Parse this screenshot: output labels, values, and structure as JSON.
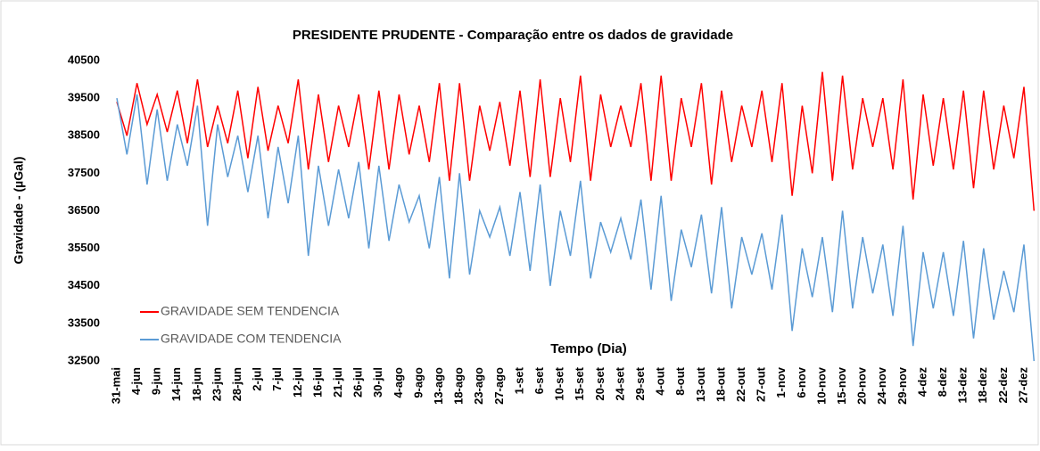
{
  "chart_data": {
    "type": "line",
    "title": "PRESIDENTE PRUDENTE - Comparação entre  os dados de gravidade",
    "y_label": "Gravidade - (µGal)",
    "x_label": "Tempo  (Dia)",
    "categories": [
      "31-mai",
      null,
      "4-jun",
      null,
      "9-jun",
      null,
      "14-jun",
      null,
      "18-jun",
      null,
      "23-jun",
      null,
      "28-jun",
      null,
      "2-jul",
      null,
      "7-jul",
      null,
      "12-jul",
      null,
      "16-jul",
      null,
      "21-jul",
      null,
      "26-jul",
      null,
      "30-jul",
      null,
      "4-ago",
      null,
      "9-ago",
      null,
      "13-ago",
      null,
      "18-ago",
      null,
      "23-ago",
      null,
      "27-ago",
      null,
      "1-set",
      null,
      "6-set",
      null,
      "10-set",
      null,
      "15-set",
      null,
      "20-set",
      null,
      "24-set",
      null,
      "29-set",
      null,
      "4-out",
      null,
      "8-out",
      null,
      "13-out",
      null,
      "18-out",
      null,
      "22-out",
      null,
      "27-out",
      null,
      "1-nov",
      null,
      "6-nov",
      null,
      "10-nov",
      null,
      "15-nov",
      null,
      "20-nov",
      null,
      "24-nov",
      null,
      "29-nov",
      null,
      "4-dez",
      null,
      "8-dez",
      null,
      "13-dez",
      null,
      "18-dez",
      null,
      "22-dez",
      null,
      "27-dez",
      null
    ],
    "series": [
      {
        "name": "GRAVIDADE SEM TENDENCIA",
        "color": "#ff0000",
        "values": [
          39400,
          38500,
          39900,
          38800,
          39600,
          38600,
          39700,
          38300,
          40000,
          38200,
          39300,
          38300,
          39700,
          37900,
          39800,
          38100,
          39300,
          38300,
          40000,
          37600,
          39600,
          37800,
          39300,
          38200,
          39600,
          37600,
          39700,
          37600,
          39600,
          38000,
          39300,
          37800,
          39900,
          37300,
          39900,
          37300,
          39300,
          38100,
          39400,
          37700,
          39700,
          37400,
          40000,
          37400,
          39500,
          37800,
          40100,
          37300,
          39600,
          38200,
          39300,
          38200,
          39900,
          37300,
          40100,
          37300,
          39500,
          38200,
          39900,
          37200,
          39700,
          37800,
          39300,
          38200,
          39700,
          37800,
          39900,
          36900,
          39300,
          37500,
          40200,
          37300,
          40100,
          37600,
          39500,
          38200,
          39500,
          37600,
          40000,
          36800,
          39600,
          37700,
          39500,
          37600,
          39700,
          37100,
          39700,
          37600,
          39300,
          37900,
          39800,
          36500
        ]
      },
      {
        "name": "GRAVIDADE COM TENDENCIA",
        "color": "#5b9bd5",
        "values": [
          39500,
          38000,
          39600,
          37200,
          39200,
          37300,
          38800,
          37700,
          39300,
          36100,
          38800,
          37400,
          38500,
          37000,
          38500,
          36300,
          38200,
          36700,
          38500,
          35300,
          37700,
          36100,
          37600,
          36300,
          37800,
          35500,
          37700,
          35700,
          37200,
          36200,
          36900,
          35500,
          37400,
          34700,
          37500,
          34800,
          36500,
          35800,
          36600,
          35300,
          37000,
          34900,
          37200,
          34500,
          36500,
          35300,
          37300,
          34700,
          36200,
          35400,
          36300,
          35200,
          36800,
          34400,
          36900,
          34100,
          36000,
          35000,
          36400,
          34300,
          36600,
          33900,
          35800,
          34800,
          35900,
          34400,
          36400,
          33300,
          35500,
          34200,
          35800,
          33800,
          36500,
          33900,
          35800,
          34300,
          35600,
          33700,
          36100,
          32900,
          35400,
          33900,
          35400,
          33700,
          35700,
          33100,
          35500,
          33600,
          34900,
          33800,
          35600,
          32500
        ]
      }
    ],
    "ylim": [
      32500,
      40500
    ],
    "yticks": [
      32500,
      33500,
      34500,
      35500,
      36500,
      37500,
      38500,
      39500,
      40500
    ],
    "grid": false
  }
}
